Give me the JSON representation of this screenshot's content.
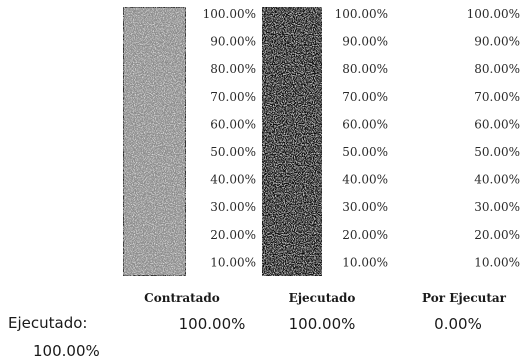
{
  "chart_data": {
    "type": "bar",
    "categories": [
      "Contratado",
      "Ejecutado",
      "Por Ejecutar"
    ],
    "values": [
      100.0,
      100.0,
      0.0
    ],
    "value_labels": [
      "100.00%",
      "100.00%",
      "0.00%"
    ],
    "ylim": [
      0,
      100
    ],
    "tick_labels": [
      "100.00%",
      "90.00%",
      "80.00%",
      "70.00%",
      "60.00%",
      "50.00%",
      "40.00%",
      "30.00%",
      "20.00%",
      "10.00%"
    ],
    "bar_colors": [
      "#8c8c8c",
      "#0d0d0d",
      "#ffffff"
    ],
    "grid": false
  },
  "summary": {
    "label": "Ejecutado:",
    "value": "100.00%"
  }
}
